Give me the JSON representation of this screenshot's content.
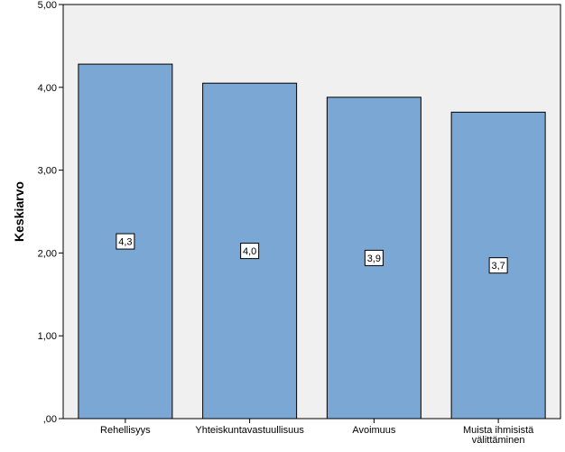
{
  "chart_data": {
    "type": "bar",
    "categories": [
      "Rehellisyys",
      "Yhteiskuntavastuullisuus",
      "Avoimuus",
      "Muista ihmisistä välittäminen"
    ],
    "category_lines": [
      [
        "Rehellisyys"
      ],
      [
        "Yhteiskuntavastuullisuus"
      ],
      [
        "Avoimuus"
      ],
      [
        "Muista ihmisistä",
        "välittäminen"
      ]
    ],
    "values": [
      4.28,
      4.05,
      3.88,
      3.7
    ],
    "data_labels": [
      "4,3",
      "4,0",
      "3,9",
      "3,7"
    ],
    "ylabel": "Keskiarvo",
    "ylim": [
      0,
      5
    ],
    "y_ticks": [
      0,
      1,
      2,
      3,
      4,
      5
    ],
    "y_tick_labels": [
      ",00",
      "1,00",
      "2,00",
      "3,00",
      "4,00",
      "5,00"
    ],
    "grid": false,
    "colors": {
      "bar_fill": "#7BA7D5",
      "bar_stroke": "#000000",
      "plot_bg": "#F0F0F0"
    }
  }
}
